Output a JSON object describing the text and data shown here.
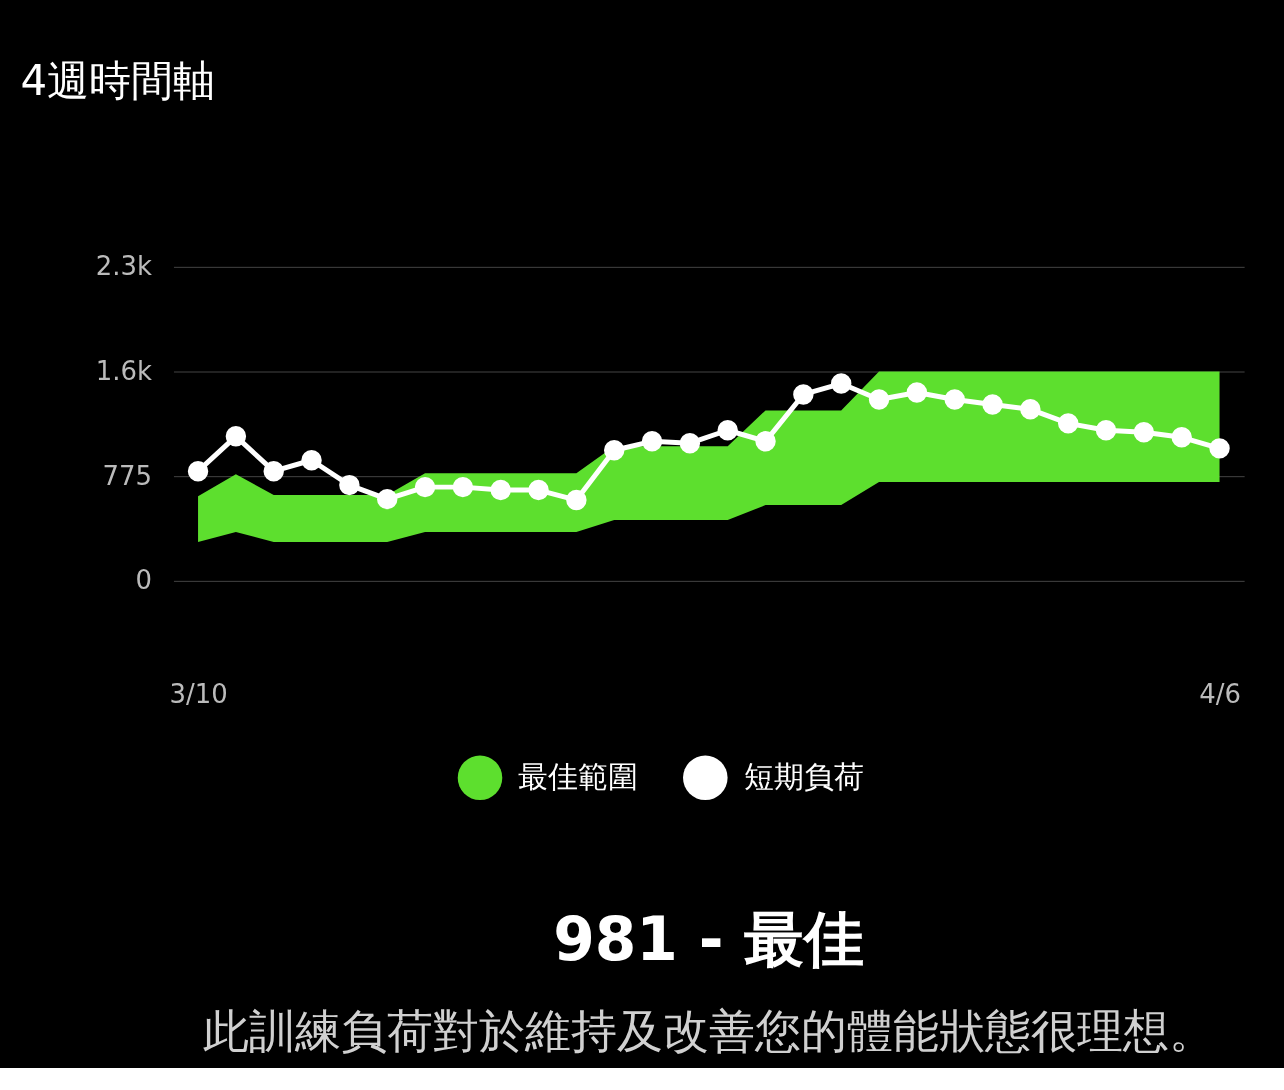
{
  "chart_data": {
    "type": "line",
    "title": "4週時間軸",
    "categories": [
      "3/10",
      null,
      null,
      null,
      null,
      null,
      null,
      null,
      null,
      null,
      null,
      null,
      null,
      null,
      null,
      null,
      null,
      null,
      null,
      null,
      null,
      null,
      null,
      null,
      null,
      null,
      null,
      "4/6"
    ],
    "ylim": [
      0,
      2325
    ],
    "yticks": [
      0,
      775,
      {
        "value": 1550,
        "label": "1.6k"
      },
      {
        "value": 2325,
        "label": "2.3k"
      }
    ],
    "grid": "y",
    "legend": "bottom",
    "series": [
      {
        "name": "最佳範圍",
        "type": "area",
        "color": "#5ddf2e",
        "values": [
          null,
          null,
          null,
          null,
          null,
          null,
          null,
          null,
          null,
          null,
          null,
          null,
          null,
          null,
          null,
          null,
          null,
          null,
          null,
          null,
          null,
          null,
          null,
          null,
          null,
          null,
          null,
          null
        ],
        "lower": [
          288,
          362,
          288,
          288,
          288,
          288,
          362,
          362,
          362,
          362,
          362,
          450,
          450,
          450,
          450,
          561,
          561,
          561,
          731,
          731,
          731,
          731,
          731,
          731,
          731,
          731,
          731,
          731
        ],
        "upper": [
          627,
          790,
          635,
          635,
          635,
          635,
          797,
          797,
          797,
          797,
          797,
          996,
          996,
          996,
          996,
          1262,
          1262,
          1262,
          1550,
          1550,
          1550,
          1550,
          1550,
          1550,
          1550,
          1550,
          1550,
          1550
        ]
      },
      {
        "name": "短期負荷",
        "color": "#ffffff",
        "marker": "circle",
        "values": [
          812,
          1070,
          812,
          893,
          709,
          605,
          694,
          694,
          672,
          672,
          598,
          967,
          1033,
          1019,
          1115,
          1033,
          1380,
          1461,
          1343,
          1395,
          1343,
          1306,
          1270,
          1166,
          1115,
          1100,
          1063,
          981
        ]
      }
    ],
    "annotations": [
      "981 - 最佳",
      "此訓練負荷對於維持及改善您的體能狀態很理想。"
    ]
  }
}
